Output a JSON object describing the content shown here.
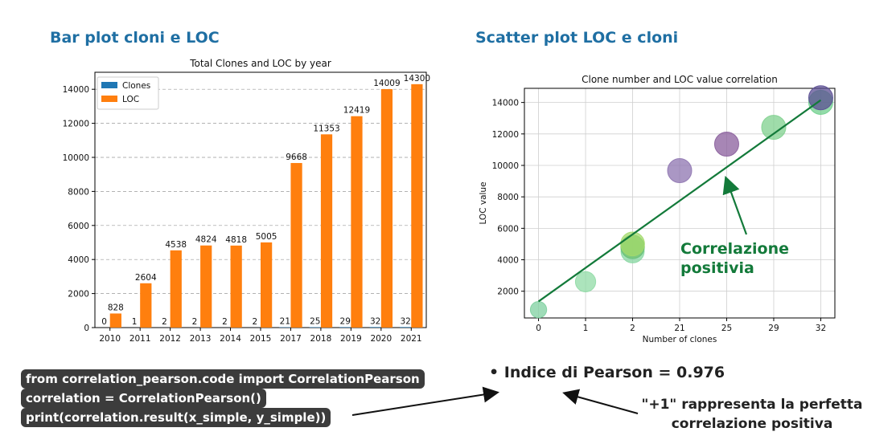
{
  "headings": {
    "bar": "Bar plot cloni e LOC",
    "scatter": "Scatter plot LOC e cloni"
  },
  "code_lines": [
    "from correlation_pearson.code import CorrelationPearson",
    "correlation = CorrelationPearson()",
    "print(correlation.result(x_simple, y_simple))"
  ],
  "bullet_text": "Indice di Pearson = 0.976",
  "note_lines": [
    "\"+1\" rappresenta la perfetta",
    "correlazione positiva"
  ],
  "callout_lines": [
    "Correlazione",
    "positivia"
  ],
  "colors": {
    "heading": "#1f6fa3",
    "clones": "#1f77b4",
    "loc": "#ff7f0e",
    "callout": "#137a3a"
  },
  "chart_data": [
    {
      "type": "bar",
      "title": "Total Clones and LOC by year",
      "xlabel": "",
      "ylabel": "",
      "categories": [
        "2010",
        "2011",
        "2012",
        "2013",
        "2014",
        "2015",
        "2017",
        "2018",
        "2019",
        "2020",
        "2021"
      ],
      "series": [
        {
          "name": "Clones",
          "values": [
            0,
            1,
            2,
            2,
            2,
            2,
            21,
            25,
            29,
            32,
            32
          ]
        },
        {
          "name": "LOC",
          "values": [
            828,
            2604,
            4538,
            4824,
            4818,
            5005,
            9668,
            11353,
            12419,
            14009,
            14300
          ]
        }
      ],
      "ylim": [
        0,
        15000
      ],
      "yticks": [
        0,
        2000,
        4000,
        6000,
        8000,
        10000,
        12000,
        14000
      ],
      "grid": "horizontal dashed",
      "legend": "top-left"
    },
    {
      "type": "scatter",
      "title": "Clone number and LOC value correlation",
      "xlabel": "Number of clones",
      "ylabel": "LOC value",
      "x_categories": [
        "0",
        "1",
        "2",
        "21",
        "25",
        "29",
        "32"
      ],
      "points": [
        {
          "x": "0",
          "y": 828,
          "color": "#7fd0a0"
        },
        {
          "x": "1",
          "y": 2604,
          "color": "#90dba6"
        },
        {
          "x": "2",
          "y": 4538,
          "color": "#86d6a0"
        },
        {
          "x": "2",
          "y": 4824,
          "color": "#e3e86a"
        },
        {
          "x": "2",
          "y": 4818,
          "color": "#5fbf7f"
        },
        {
          "x": "2",
          "y": 5005,
          "color": "#a3d96b"
        },
        {
          "x": "21",
          "y": 9668,
          "color": "#8e74b0"
        },
        {
          "x": "25",
          "y": 11353,
          "color": "#8a5e9c"
        },
        {
          "x": "29",
          "y": 12419,
          "color": "#7fd08e"
        },
        {
          "x": "32",
          "y": 14009,
          "color": "#6fcf8c"
        },
        {
          "x": "32",
          "y": 14300,
          "color": "#5b4e93"
        }
      ],
      "trendline": {
        "from": [
          0,
          1350
        ],
        "to": [
          6,
          14150
        ],
        "color": "#137a3a"
      },
      "ylim": [
        0,
        15000
      ],
      "yticks": [
        2000,
        4000,
        6000,
        8000,
        10000,
        12000,
        14000
      ],
      "grid": "both"
    }
  ]
}
